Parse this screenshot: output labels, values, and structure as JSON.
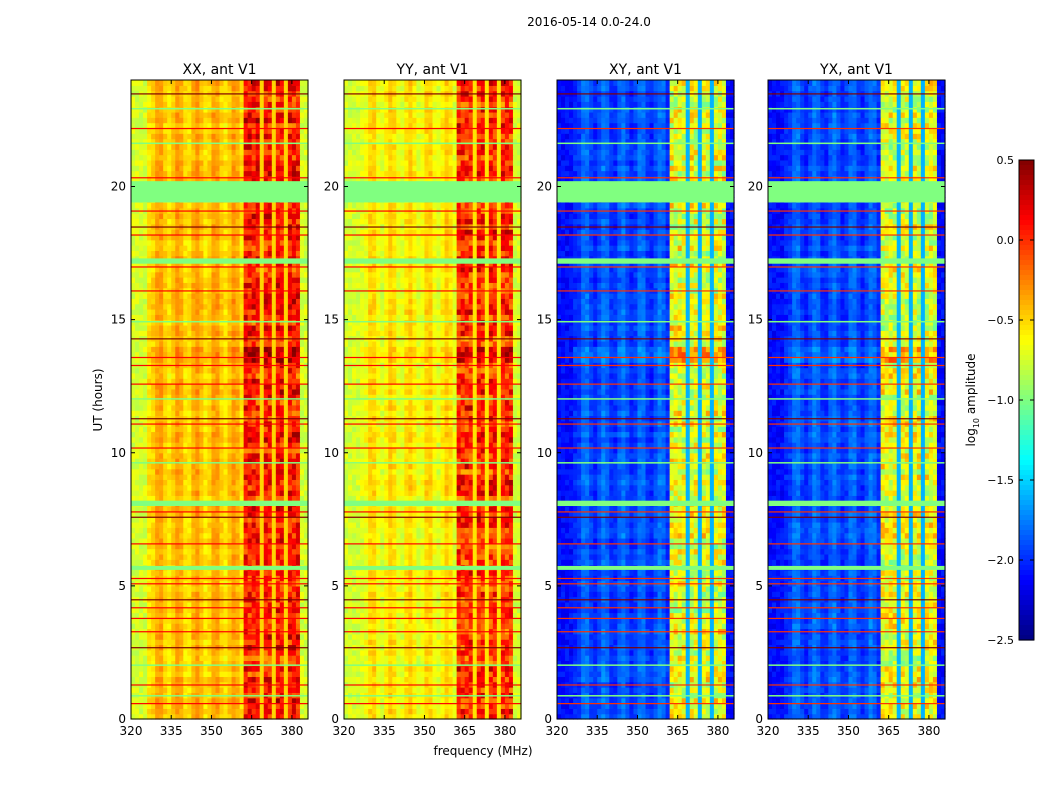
{
  "figure_title": "2016-05-14 0.0-24.0",
  "chart_data": {
    "type": "heatmap",
    "title": "2016-05-14 0.0-24.0",
    "xlabel": "frequency (MHz)",
    "ylabel": "UT (hours)",
    "xlim": [
      320,
      386
    ],
    "ylim": [
      0,
      24
    ],
    "x_ticks": [
      "320",
      "335",
      "350",
      "365",
      "380"
    ],
    "x_tick_values": [
      320,
      335,
      350,
      365,
      380
    ],
    "y_ticks": [
      "0",
      "5",
      "10",
      "15",
      "20"
    ],
    "y_tick_values": [
      0,
      5,
      10,
      15,
      20
    ],
    "flagged_hours": [
      [
        19.4,
        20.2
      ],
      [
        17.1,
        17.3
      ],
      [
        8.0,
        8.2
      ],
      [
        5.6,
        5.75
      ],
      [
        22.9,
        22.95
      ],
      [
        21.6,
        21.65
      ],
      [
        14.9,
        14.95
      ],
      [
        12.0,
        12.05
      ],
      [
        9.6,
        9.65
      ],
      [
        2.0,
        2.05
      ],
      [
        0.85,
        0.9
      ]
    ],
    "rfi_hours": [
      23.5,
      22.2,
      20.35,
      19.1,
      18.5,
      18.2,
      17.0,
      16.1,
      14.3,
      13.6,
      13.3,
      12.6,
      11.3,
      11.1,
      10.2,
      7.8,
      7.6,
      6.6,
      5.3,
      5.1,
      4.5,
      4.2,
      3.8,
      3.3,
      2.7,
      1.3,
      0.6
    ],
    "panels": [
      {
        "title": "XX, ant V1",
        "base": -0.45,
        "edge": -0.75,
        "band": 0.05,
        "gap": -0.5
      },
      {
        "title": "YY, ant V1",
        "base": -0.6,
        "edge": -0.75,
        "band": 0.0,
        "gap": -0.55
      },
      {
        "title": "XY, ant V1",
        "base": -1.9,
        "edge": -2.1,
        "band": -0.7,
        "gap": -1.6
      },
      {
        "title": "YX, ant V1",
        "base": -1.9,
        "edge": -2.1,
        "band": -0.7,
        "gap": -1.6
      }
    ],
    "band_mhz": [
      362,
      382
    ],
    "colorbar": {
      "label": "log10 amplitude",
      "label_main": "log",
      "label_sub": "10",
      "label_rest": " amplitude",
      "range": [
        -2.5,
        0.5
      ],
      "ticks": [
        "0.5",
        "0.0",
        "−0.5",
        "−1.0",
        "−1.5",
        "−2.0",
        "−2.5"
      ],
      "tick_values": [
        0.5,
        0.0,
        -0.5,
        -1.0,
        -1.5,
        -2.0,
        -2.5
      ],
      "colormap": "jet"
    }
  }
}
